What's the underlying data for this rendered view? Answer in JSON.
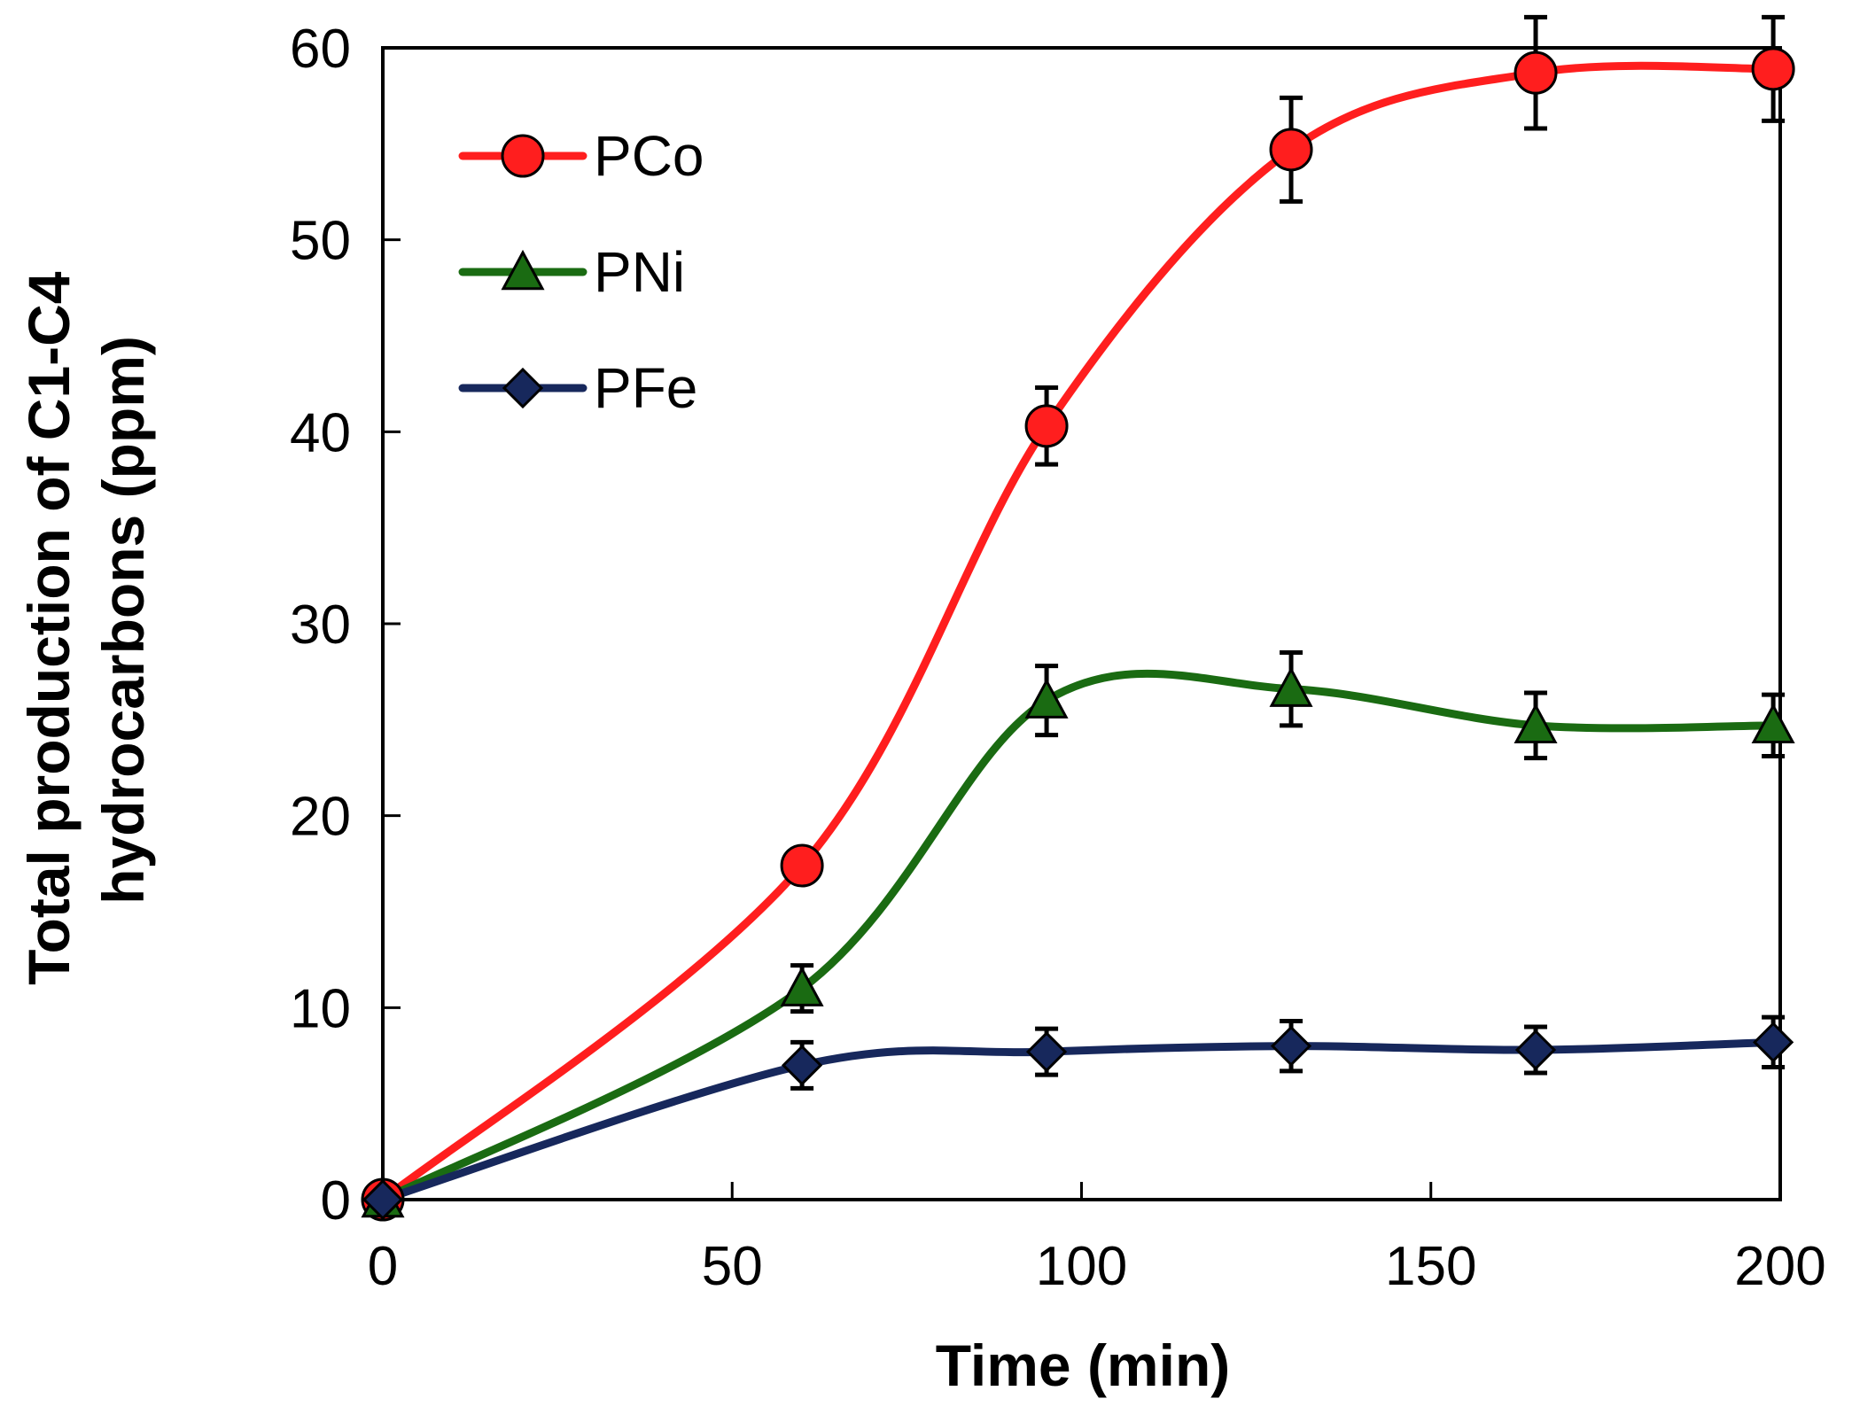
{
  "chart_data": {
    "type": "line",
    "title": "",
    "xlabel": "Time (min)",
    "ylabel_lines": [
      "Total production of C1-C4",
      "hydrocarbons (ppm)"
    ],
    "xlim": [
      0,
      200
    ],
    "ylim": [
      0,
      60
    ],
    "xticks": [
      0,
      50,
      100,
      150,
      200
    ],
    "yticks": [
      0,
      10,
      20,
      30,
      40,
      50,
      60
    ],
    "xtick_labels": [
      "0",
      "50",
      "100",
      "150",
      "200"
    ],
    "ytick_labels": [
      "0",
      "10",
      "20",
      "30",
      "40",
      "50",
      "60"
    ],
    "grid": false,
    "legend_position": "top-left",
    "x": [
      0,
      60,
      95,
      130,
      165,
      199
    ],
    "series": [
      {
        "name": "PCo",
        "marker": "circle",
        "color": "#ff1e1e",
        "marker_fill": "#ff1e1e",
        "values": [
          0,
          17.4,
          40.3,
          54.7,
          58.7,
          58.9
        ],
        "errors": [
          0,
          0,
          2.0,
          2.7,
          2.9,
          2.7
        ]
      },
      {
        "name": "PNi",
        "marker": "triangle",
        "color": "#1a6b12",
        "marker_fill": "#1a6b12",
        "values": [
          0,
          11.0,
          26.0,
          26.6,
          24.7,
          24.7
        ],
        "errors": [
          0,
          1.2,
          1.8,
          1.9,
          1.7,
          1.6
        ]
      },
      {
        "name": "PFe",
        "marker": "diamond",
        "color": "#17285c",
        "marker_fill": "#17285c",
        "values": [
          0,
          7.0,
          7.7,
          8.0,
          7.8,
          8.2
        ],
        "errors": [
          0,
          1.2,
          1.2,
          1.3,
          1.2,
          1.3
        ]
      }
    ]
  }
}
